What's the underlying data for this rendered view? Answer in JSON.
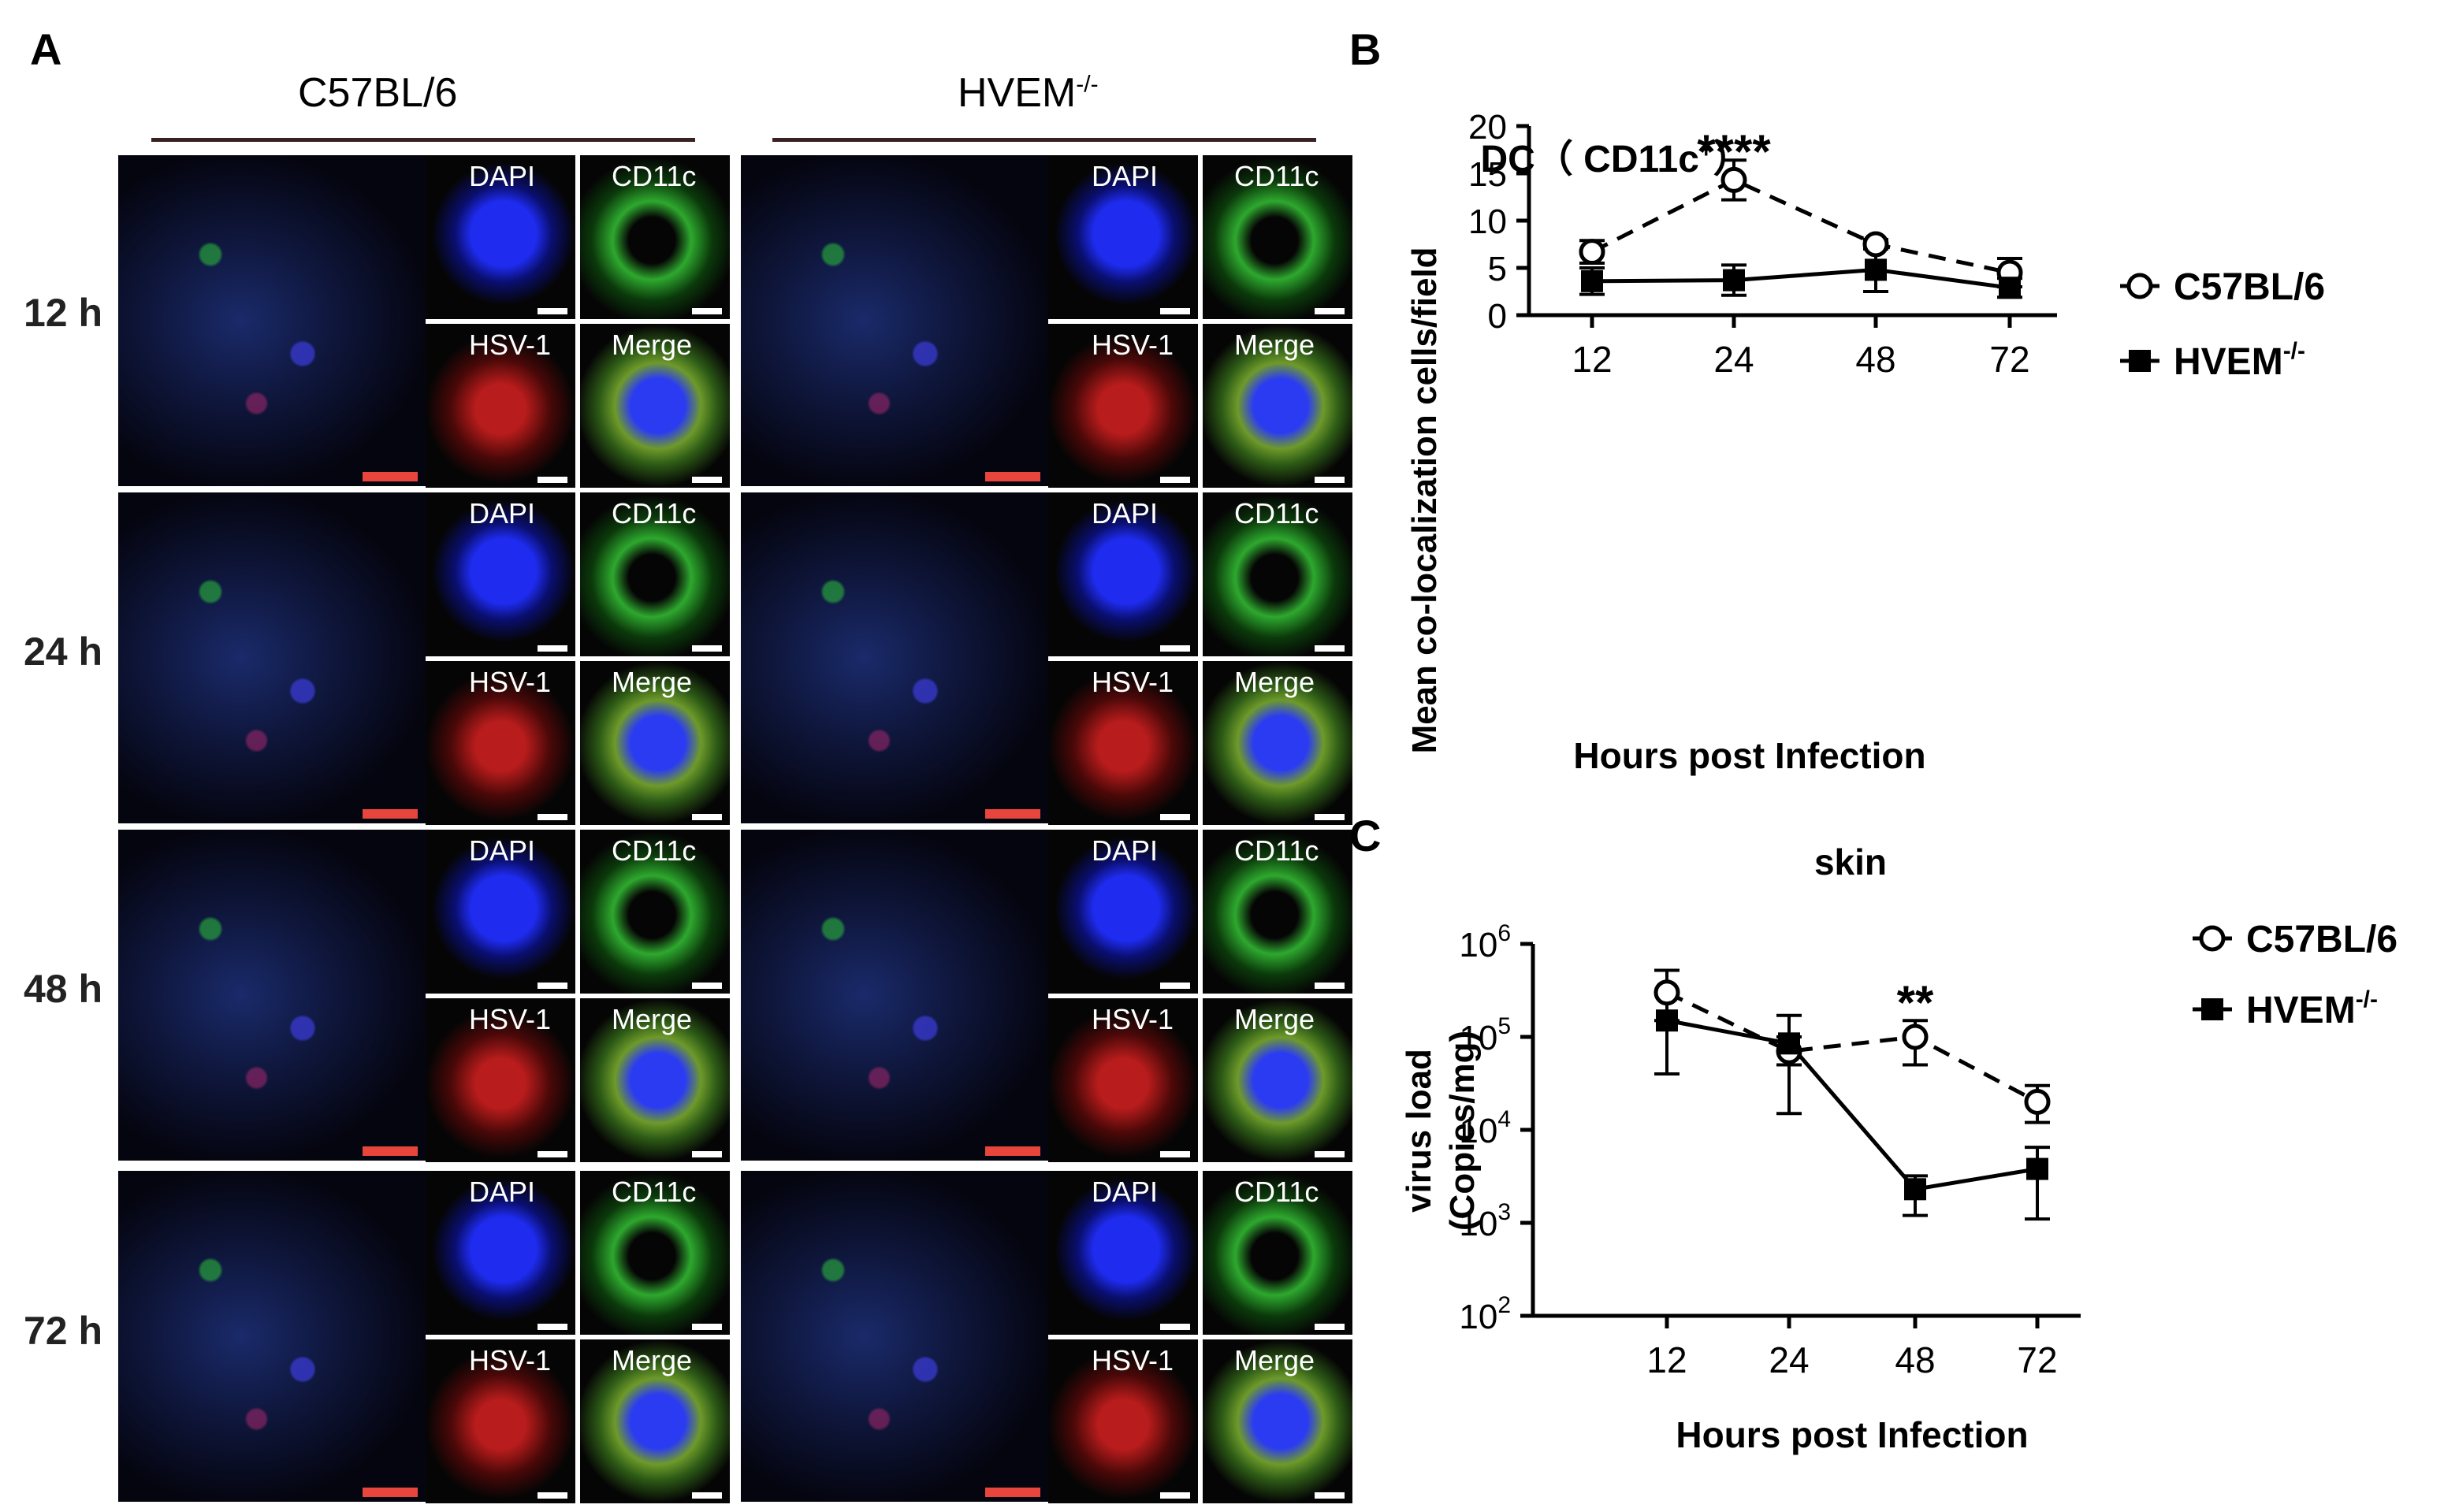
{
  "panel_a": {
    "letter": "A",
    "strains": [
      "C57BL/6",
      "HVEM"
    ],
    "knockout_superscript": "-/-",
    "time_rows": [
      "12 h",
      "24 h",
      "48 h",
      "72 h"
    ],
    "channels": [
      "DAPI",
      "CD11c",
      "HSV-1",
      "Merge"
    ]
  },
  "chart_data": [
    {
      "panel": "B",
      "type": "line",
      "title": "DC（ CD11c",
      "title_sup": "+",
      "title_close": "）",
      "xlabel": "Hours post Infection",
      "ylabel": "Mean co-localization cells/field",
      "categories": [
        "12",
        "24",
        "48",
        "72"
      ],
      "ylim": [
        0,
        20
      ],
      "yticks": [
        "0",
        "5",
        "10",
        "15",
        "20"
      ],
      "legend_position": "right",
      "series": [
        {
          "name": "C57BL/6",
          "marker": "open-circle",
          "line": "dashed",
          "values": [
            6.7,
            14.3,
            7.5,
            4.5
          ],
          "err": [
            1.2,
            2.1,
            0.5,
            1.5
          ]
        },
        {
          "name": "HVEM",
          "name_sup": "-/-",
          "marker": "filled-square",
          "line": "solid",
          "values": [
            3.6,
            3.7,
            4.8,
            2.9
          ],
          "err": [
            1.4,
            1.6,
            2.3,
            1.0
          ]
        }
      ],
      "annotations": [
        {
          "text": "****",
          "category": "24"
        }
      ]
    },
    {
      "panel": "C",
      "type": "line",
      "title": "skin",
      "xlabel": "Hours post Infection",
      "ylabel": [
        "virus load",
        "(Copies/mg)"
      ],
      "categories": [
        "12",
        "24",
        "48",
        "72"
      ],
      "yscale": "log",
      "ylim": [
        100,
        1000000
      ],
      "yticks": [
        {
          "base": "10",
          "exp": "6"
        },
        {
          "base": "10",
          "exp": "5"
        },
        {
          "base": "10",
          "exp": "4"
        },
        {
          "base": "10",
          "exp": "3"
        },
        {
          "base": "10",
          "exp": "2"
        }
      ],
      "legend_position": "right",
      "series": [
        {
          "name": "C57BL/6",
          "marker": "open-circle",
          "line": "dashed",
          "values": [
            300000,
            70000,
            100000,
            20000
          ],
          "lo": [
            150000,
            50000,
            50000,
            12000
          ],
          "hi": [
            520000,
            100000,
            150000,
            30000
          ]
        },
        {
          "name": "HVEM",
          "name_sup": "-/-",
          "marker": "filled-square",
          "line": "solid",
          "values": [
            150000,
            85000,
            2300,
            3800
          ],
          "lo": [
            40000,
            15000,
            1200,
            1100
          ],
          "hi": [
            300000,
            170000,
            3200,
            6500
          ]
        }
      ],
      "annotations": [
        {
          "text": "**",
          "category": "48"
        }
      ]
    }
  ],
  "colors": {
    "red_scale": "#e8453c",
    "white_scale": "#ffffff",
    "background": "#050505"
  }
}
